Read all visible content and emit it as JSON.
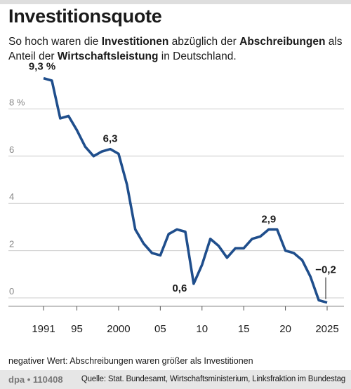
{
  "header": {
    "title": "Investitionsquote",
    "subtitle_parts": [
      {
        "text": "So hoch waren die ",
        "bold": false
      },
      {
        "text": "Investitionen",
        "bold": true
      },
      {
        "text": " abzüglich der ",
        "bold": false
      },
      {
        "text": "Abschreibungen",
        "bold": true
      },
      {
        "text": " als Anteil der ",
        "bold": false
      },
      {
        "text": "Wirtschaftsleistung",
        "bold": true
      },
      {
        "text": " in Deutschland.",
        "bold": false
      }
    ]
  },
  "chart_data": {
    "type": "line",
    "x": [
      1991,
      1992,
      1993,
      1994,
      1995,
      1996,
      1997,
      1998,
      1999,
      2000,
      2001,
      2002,
      2003,
      2004,
      2005,
      2006,
      2007,
      2008,
      2009,
      2010,
      2011,
      2012,
      2013,
      2014,
      2015,
      2016,
      2017,
      2018,
      2019,
      2020,
      2021,
      2022,
      2023,
      2024,
      2025
    ],
    "values": [
      9.3,
      9.2,
      7.6,
      7.7,
      7.1,
      6.4,
      6.0,
      6.2,
      6.3,
      6.1,
      4.8,
      2.9,
      2.3,
      1.9,
      1.8,
      2.7,
      2.9,
      2.8,
      0.6,
      1.4,
      2.5,
      2.2,
      1.7,
      2.1,
      2.1,
      2.5,
      2.6,
      2.9,
      2.9,
      2.0,
      1.9,
      1.6,
      0.9,
      -0.1,
      -0.2
    ],
    "xlim": [
      1991,
      2025
    ],
    "ylim": [
      -0.2,
      9.3
    ],
    "y_ticks": [
      {
        "value": 0,
        "label": "0"
      },
      {
        "value": 2,
        "label": "2"
      },
      {
        "value": 4,
        "label": "4"
      },
      {
        "value": 6,
        "label": "6"
      },
      {
        "value": 8,
        "label": "8 %"
      }
    ],
    "x_ticks": [
      {
        "value": 1991,
        "label": "1991"
      },
      {
        "value": 1995,
        "label": "95"
      },
      {
        "value": 2000,
        "label": "2000"
      },
      {
        "value": 2005,
        "label": "05"
      },
      {
        "value": 2010,
        "label": "10"
      },
      {
        "value": 2015,
        "label": "15"
      },
      {
        "value": 2020,
        "label": "20"
      },
      {
        "value": 2025,
        "label": "2025"
      }
    ],
    "annotations": [
      {
        "x": 1991,
        "y": 9.3,
        "label": "9,3 %"
      },
      {
        "x": 1999,
        "y": 6.3,
        "label": "6,3"
      },
      {
        "x": 2009,
        "y": 0.6,
        "label": "0,6"
      },
      {
        "x": 2018,
        "y": 2.9,
        "label": "2,9"
      },
      {
        "x": 2025,
        "y": -0.2,
        "label": "−0,2"
      }
    ],
    "grid": true,
    "line_color": "#1f4e8c",
    "grid_color": "#cccccc"
  },
  "footnote": "negativer Wert: Abschreibungen waren größer als Investitionen",
  "footer": {
    "credit": "dpa • 110408",
    "source": "Quelle: Stat. Bundesamt, Wirtschaftsministerium, Linksfraktion im Bundestag"
  }
}
